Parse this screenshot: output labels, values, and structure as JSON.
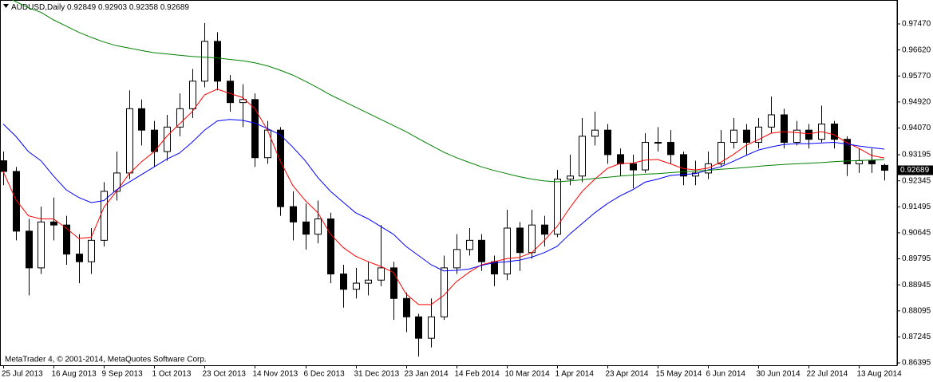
{
  "chart_data": {
    "type": "candlestick",
    "title": "AUDUSD,Daily",
    "copyright": "MetaTrader 4, © 2001-2014, MetaQuotes Software Corp.",
    "categories": [
      "25 Jul 2013",
      null,
      null,
      null,
      "16 Aug 2013",
      null,
      null,
      null,
      "9 Sep 2013",
      null,
      null,
      null,
      "1 Oct 2013",
      null,
      null,
      null,
      "23 Oct 2013",
      null,
      null,
      null,
      "14 Nov 2013",
      null,
      null,
      null,
      "6 Dec 2013",
      null,
      null,
      null,
      "31 Dec 2013",
      null,
      null,
      null,
      "23 Jan 2014",
      null,
      null,
      null,
      "14 Feb 2014",
      null,
      null,
      null,
      "10 Mar 2014",
      null,
      null,
      null,
      "1 Apr 2014",
      null,
      null,
      null,
      "23 Apr 2014",
      null,
      null,
      null,
      "15 May 2014",
      null,
      null,
      null,
      "6 Jun 2014",
      null,
      null,
      null,
      "30 Jun 2014",
      null,
      null,
      null,
      "22 Jul 2014",
      null,
      null,
      null,
      "13 Aug 2014",
      null,
      null
    ],
    "open": [
      0.93,
      0.9265,
      0.907,
      0.895,
      0.91,
      0.909,
      0.8995,
      0.897,
      0.904,
      0.92,
      0.926,
      0.947,
      0.94,
      0.933,
      0.941,
      0.947,
      0.956,
      0.969,
      0.956,
      0.949,
      0.95,
      0.931,
      0.94,
      0.915,
      0.91,
      0.906,
      0.911,
      0.893,
      0.888,
      0.89,
      0.891,
      0.895,
      0.885,
      0.879,
      0.872,
      0.879,
      0.895,
      0.901,
      0.904,
      0.897,
      0.893,
      0.908,
      0.9,
      0.909,
      0.906,
      0.924,
      0.925,
      0.938,
      0.94,
      0.932,
      0.929,
      0.927,
      0.936,
      0.936,
      0.932,
      0.925,
      0.926,
      0.929,
      0.936,
      0.94,
      0.936,
      0.941,
      0.945,
      0.936,
      0.94,
      0.937,
      0.942,
      0.937,
      0.929,
      0.93,
      0.92849
    ],
    "high": [
      0.933,
      0.928,
      0.911,
      0.915,
      0.918,
      0.912,
      0.906,
      0.908,
      0.923,
      0.933,
      0.953,
      0.95,
      0.943,
      0.945,
      0.952,
      0.96,
      0.975,
      0.972,
      0.958,
      0.955,
      0.952,
      0.943,
      0.941,
      0.92,
      0.916,
      0.917,
      0.913,
      0.896,
      0.895,
      0.897,
      0.909,
      0.897,
      0.887,
      0.88,
      0.885,
      0.899,
      0.906,
      0.908,
      0.906,
      0.899,
      0.914,
      0.91,
      0.914,
      0.912,
      0.927,
      0.932,
      0.944,
      0.946,
      0.942,
      0.934,
      0.932,
      0.939,
      0.941,
      0.94,
      0.933,
      0.93,
      0.933,
      0.94,
      0.944,
      0.942,
      0.944,
      0.951,
      0.947,
      0.943,
      0.942,
      0.948,
      0.943,
      0.938,
      0.934,
      0.934,
      0.92903
    ],
    "low": [
      0.922,
      0.904,
      0.886,
      0.893,
      0.904,
      0.896,
      0.89,
      0.893,
      0.902,
      0.917,
      0.924,
      0.935,
      0.928,
      0.93,
      0.938,
      0.944,
      0.954,
      0.953,
      0.946,
      0.941,
      0.928,
      0.929,
      0.912,
      0.904,
      0.901,
      0.903,
      0.89,
      0.882,
      0.885,
      0.886,
      0.889,
      0.878,
      0.874,
      0.866,
      0.869,
      0.878,
      0.893,
      0.899,
      0.894,
      0.889,
      0.891,
      0.894,
      0.898,
      0.902,
      0.905,
      0.922,
      0.923,
      0.935,
      0.929,
      0.925,
      0.921,
      0.926,
      0.933,
      0.929,
      0.922,
      0.922,
      0.924,
      0.928,
      0.934,
      0.932,
      0.934,
      0.939,
      0.934,
      0.935,
      0.934,
      0.936,
      0.934,
      0.925,
      0.926,
      0.926,
      0.92358
    ],
    "close": [
      0.9265,
      0.907,
      0.895,
      0.91,
      0.909,
      0.8995,
      0.897,
      0.904,
      0.92,
      0.926,
      0.947,
      0.94,
      0.933,
      0.941,
      0.947,
      0.956,
      0.969,
      0.956,
      0.949,
      0.95,
      0.931,
      0.94,
      0.915,
      0.91,
      0.906,
      0.911,
      0.893,
      0.888,
      0.89,
      0.891,
      0.895,
      0.885,
      0.879,
      0.872,
      0.879,
      0.895,
      0.901,
      0.904,
      0.897,
      0.893,
      0.908,
      0.9,
      0.909,
      0.906,
      0.924,
      0.925,
      0.938,
      0.94,
      0.932,
      0.929,
      0.927,
      0.936,
      0.936,
      0.932,
      0.925,
      0.926,
      0.929,
      0.936,
      0.94,
      0.936,
      0.941,
      0.945,
      0.936,
      0.94,
      0.937,
      0.942,
      0.937,
      0.929,
      0.93,
      0.929,
      0.92689
    ],
    "up_color": "#ffffff",
    "down_color": "#000000",
    "edge_color": "#000000",
    "ma_lines": [
      {
        "color": "#ff0000",
        "values": [
          0.9265,
          0.9173,
          0.912,
          0.911,
          0.911,
          0.908,
          0.9046,
          0.905,
          0.9148,
          0.92,
          0.9257,
          0.9297,
          0.933,
          0.938,
          0.942,
          0.946,
          0.9515,
          0.9534,
          0.952,
          0.9507,
          0.947,
          0.94,
          0.93,
          0.922,
          0.917,
          0.913,
          0.906,
          0.9017,
          0.8988,
          0.897,
          0.8955,
          0.8935,
          0.8865,
          0.883,
          0.883,
          0.886,
          0.8905,
          0.8935,
          0.896,
          0.897,
          0.898,
          0.8984,
          0.9,
          0.904,
          0.9085,
          0.9145,
          0.92,
          0.924,
          0.9275,
          0.9291,
          0.9292,
          0.9302,
          0.9304,
          0.929,
          0.9275,
          0.927,
          0.9276,
          0.9295,
          0.932,
          0.935,
          0.9369,
          0.939,
          0.9395,
          0.9392,
          0.9388,
          0.9395,
          0.9385,
          0.936,
          0.934,
          0.9317,
          0.9309
        ]
      },
      {
        "color": "#0000ff",
        "values": [
          0.942,
          0.938,
          0.933,
          0.93,
          0.925,
          0.9205,
          0.918,
          0.9163,
          0.917,
          0.9205,
          0.923,
          0.9255,
          0.928,
          0.9305,
          0.9325,
          0.936,
          0.94,
          0.943,
          0.9435,
          0.9432,
          0.9423,
          0.9405,
          0.9385,
          0.9345,
          0.93,
          0.9245,
          0.92,
          0.9165,
          0.913,
          0.911,
          0.9085,
          0.906,
          0.902,
          0.899,
          0.896,
          0.894,
          0.8942,
          0.8946,
          0.8958,
          0.8967,
          0.897,
          0.8975,
          0.8985,
          0.9,
          0.902,
          0.906,
          0.9095,
          0.913,
          0.916,
          0.9185,
          0.9205,
          0.923,
          0.924,
          0.9252,
          0.9255,
          0.9258,
          0.927,
          0.928,
          0.9298,
          0.9317,
          0.9335,
          0.9345,
          0.9353,
          0.9356,
          0.9356,
          0.9358,
          0.936,
          0.9355,
          0.9348,
          0.9343,
          0.9338
        ]
      },
      {
        "color": "#008000",
        "values": [
          0.984,
          0.982,
          0.98,
          0.9785,
          0.976,
          0.974,
          0.972,
          0.9703,
          0.9688,
          0.9676,
          0.9668,
          0.966,
          0.9653,
          0.9649,
          0.9645,
          0.9641,
          0.9638,
          0.9636,
          0.9631,
          0.9627,
          0.962,
          0.961,
          0.9596,
          0.958,
          0.956,
          0.9538,
          0.9515,
          0.9495,
          0.9475,
          0.9455,
          0.9435,
          0.9415,
          0.9395,
          0.9372,
          0.935,
          0.9328,
          0.931,
          0.9295,
          0.928,
          0.9268,
          0.9258,
          0.9248,
          0.924,
          0.9234,
          0.9231,
          0.9234,
          0.9238,
          0.9242,
          0.9246,
          0.925,
          0.9253,
          0.9256,
          0.9258,
          0.9261,
          0.9264,
          0.9266,
          0.9269,
          0.9272,
          0.9275,
          0.9278,
          0.9282,
          0.9285,
          0.9288,
          0.929,
          0.9292,
          0.9294,
          0.9297,
          0.9299,
          0.9301,
          0.9302,
          0.9304
        ]
      }
    ],
    "ylim": [
      0.86318,
      0.98252
    ],
    "yticks": [
      {
        "value": 0.9747,
        "label": "0.97470"
      },
      {
        "value": 0.9662,
        "label": "0.96620"
      },
      {
        "value": 0.9577,
        "label": "0.95770"
      },
      {
        "value": 0.9492,
        "label": "0.94920"
      },
      {
        "value": 0.9407,
        "label": "0.94070"
      },
      0.93195,
      0.92345,
      0.91495,
      0.90645,
      0.89795,
      0.88945,
      0.88095,
      0.87245,
      0.86395
    ],
    "grid": false
  }
}
